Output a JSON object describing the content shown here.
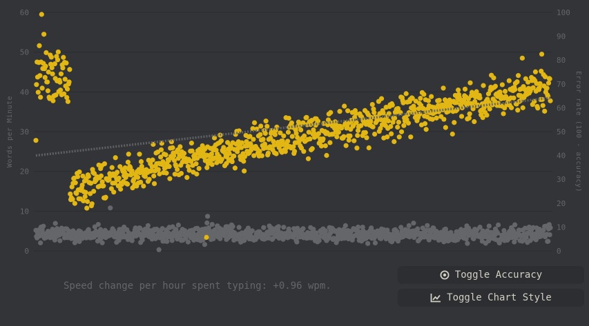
{
  "colors": {
    "background": "#323437",
    "button_bg": "#2c2e31",
    "text": "#d1d0c5",
    "sub_text": "#646669",
    "wpm_dot": "#e2b714",
    "error_dot": "#646669",
    "trend": "#646669"
  },
  "chart_data": {
    "type": "scatter",
    "ylabel": "Words per Minute",
    "y2label": "Error rate (100 - accuracy)",
    "ylim": [
      0,
      60
    ],
    "y2lim": [
      0,
      100
    ],
    "yticks": [
      "0",
      "10",
      "20",
      "30",
      "40",
      "50",
      "60"
    ],
    "y2ticks": [
      "0",
      "10",
      "20",
      "30",
      "40",
      "50",
      "60",
      "70",
      "80",
      "90",
      "100"
    ],
    "grid": true,
    "n_tests": 900,
    "series": [
      {
        "role": "wpm",
        "axis": "left",
        "segments": [
          {
            "from": 0,
            "to": 60,
            "start": 45,
            "end": 42,
            "spread": 6
          },
          {
            "from": 60,
            "to": 900,
            "start": 15,
            "end": 41,
            "spread": 4
          }
        ],
        "highlights": [
          {
            "index": 10,
            "y": 59.5
          },
          {
            "index": 14,
            "y": 54.5
          },
          {
            "index": 20,
            "y": 42.5
          },
          {
            "index": 0,
            "y": 27.8
          },
          {
            "index": 58,
            "y": 42.5
          },
          {
            "index": 72,
            "y": 19.5
          },
          {
            "index": 108,
            "y": 18.5
          },
          {
            "index": 205,
            "y": 26.8
          },
          {
            "index": 850,
            "y": 48.5
          },
          {
            "index": 884,
            "y": 49.5
          }
        ]
      },
      {
        "role": "error_rate",
        "axis": "right",
        "center": 7,
        "spread": 3,
        "highlights": [
          {
            "index": 130,
            "y": 18
          },
          {
            "index": 215,
            "y": 0.5
          },
          {
            "index": 300,
            "y": 14.5
          }
        ]
      }
    ],
    "trendline": {
      "axis": "left",
      "start": 24,
      "end": 38.5
    },
    "outlier_wpm_point": {
      "index": 298,
      "y": 3.4
    }
  },
  "speed_note": "Speed change per hour spent typing: +0.96 wpm.",
  "buttons": {
    "toggle_accuracy": "Toggle Accuracy",
    "toggle_chart_style": "Toggle Chart Style"
  }
}
